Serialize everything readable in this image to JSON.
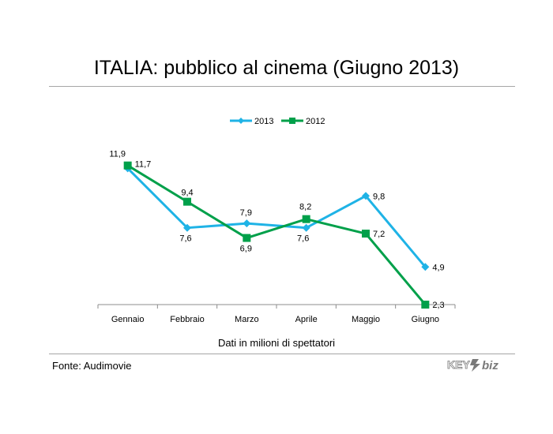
{
  "title": "ITALIA: pubblico al cinema (Giugno 2013)",
  "source": "Fonte: Audimovie",
  "logo": {
    "text_left": "KEY",
    "text_right": "biz"
  },
  "colors": {
    "series_2013": "#1fb3e6",
    "series_2012": "#00a04a",
    "axis": "#8c8c8c",
    "rule": "#a6a6a6"
  },
  "chart_data": {
    "type": "line",
    "title": "ITALIA: pubblico al cinema (Giugno 2013)",
    "xlabel": "Dati in milioni di spettatori",
    "ylabel": "",
    "categories": [
      "Gennaio",
      "Febbraio",
      "Marzo",
      "Aprile",
      "Maggio",
      "Giugno"
    ],
    "ylim": [
      0,
      14
    ],
    "grid": false,
    "legend_position": "top",
    "series": [
      {
        "name": "2013",
        "marker": "diamond",
        "color": "#1fb3e6",
        "values": [
          11.7,
          7.6,
          7.9,
          7.6,
          9.8,
          4.9
        ],
        "labels": [
          "11,7",
          "7,6",
          "7,9",
          "7,6",
          "9,8",
          "4,9"
        ]
      },
      {
        "name": "2012",
        "marker": "square",
        "color": "#00a04a",
        "values": [
          11.9,
          9.4,
          6.9,
          8.2,
          7.2,
          2.3
        ],
        "labels": [
          "11,9",
          "9,4",
          "6,9",
          "8,2",
          "7,2",
          "2,3"
        ]
      }
    ]
  }
}
